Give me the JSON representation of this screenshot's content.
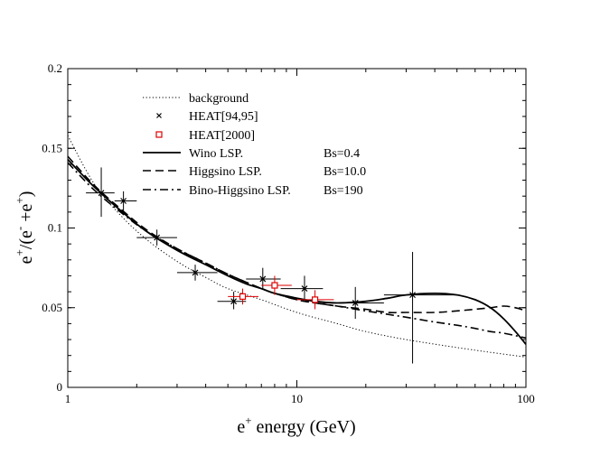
{
  "chart_data": {
    "type": "line",
    "xscale": "log",
    "xlim": [
      1,
      100
    ],
    "ylim": [
      0,
      0.2
    ],
    "xlabel": {
      "base": "e",
      "sup": "+",
      "rest": " energy (GeV)"
    },
    "ylabel": {
      "p1": "e",
      "s1": "+",
      "p2": "/(e",
      "s2": "-",
      "p3": " +e",
      "s3": "+",
      "p4": ")"
    },
    "x_ticks": [
      {
        "value": 1,
        "label": "1"
      },
      {
        "value": 10,
        "label": "10"
      },
      {
        "value": 100,
        "label": "100"
      }
    ],
    "y_ticks": [
      {
        "value": 0,
        "label": "0"
      },
      {
        "value": 0.05,
        "label": "0.05"
      },
      {
        "value": 0.1,
        "label": "0.1"
      },
      {
        "value": 0.15,
        "label": "0.15"
      },
      {
        "value": 0.2,
        "label": "0.2"
      }
    ],
    "legend_position": "top-left",
    "legend": [
      {
        "key": "background",
        "label": "background",
        "param": ""
      },
      {
        "key": "heat9495",
        "label": "HEAT[94,95]",
        "param": ""
      },
      {
        "key": "heat2000",
        "label": "HEAT[2000]",
        "param": ""
      },
      {
        "key": "wino",
        "label": "Wino LSP.",
        "param": "Bs=0.4"
      },
      {
        "key": "higgsino",
        "label": "Higgsino LSP.",
        "param": "Bs=10.0"
      },
      {
        "key": "binohiggsino",
        "label": "Bino-Higgsino LSP.",
        "param": "Bs=190"
      }
    ],
    "series": [
      {
        "key": "background",
        "style": "dotted",
        "color": "#000000",
        "points": [
          [
            1,
            0.158
          ],
          [
            1.3,
            0.128
          ],
          [
            1.7,
            0.108
          ],
          [
            2.2,
            0.093
          ],
          [
            3,
            0.079
          ],
          [
            4,
            0.069
          ],
          [
            5,
            0.062
          ],
          [
            7,
            0.055
          ],
          [
            10,
            0.047
          ],
          [
            15,
            0.04
          ],
          [
            20,
            0.035
          ],
          [
            30,
            0.03
          ],
          [
            50,
            0.025
          ],
          [
            70,
            0.022
          ],
          [
            100,
            0.019
          ]
        ]
      },
      {
        "key": "wino",
        "style": "solid",
        "color": "#000000",
        "points": [
          [
            1,
            0.143
          ],
          [
            1.3,
            0.126
          ],
          [
            1.7,
            0.111
          ],
          [
            2.2,
            0.098
          ],
          [
            3,
            0.086
          ],
          [
            4,
            0.077
          ],
          [
            5,
            0.07
          ],
          [
            6,
            0.065
          ],
          [
            7,
            0.062
          ],
          [
            8,
            0.059
          ],
          [
            10,
            0.056
          ],
          [
            12,
            0.054
          ],
          [
            15,
            0.053
          ],
          [
            20,
            0.054
          ],
          [
            25,
            0.056
          ],
          [
            30,
            0.058
          ],
          [
            40,
            0.059
          ],
          [
            50,
            0.058
          ],
          [
            60,
            0.055
          ],
          [
            70,
            0.05
          ],
          [
            80,
            0.043
          ],
          [
            90,
            0.035
          ],
          [
            100,
            0.027
          ]
        ]
      },
      {
        "key": "higgsino",
        "style": "dashed",
        "color": "#000000",
        "points": [
          [
            1,
            0.145
          ],
          [
            1.3,
            0.127
          ],
          [
            1.7,
            0.112
          ],
          [
            2.2,
            0.099
          ],
          [
            3,
            0.087
          ],
          [
            4,
            0.078
          ],
          [
            5,
            0.071
          ],
          [
            6,
            0.066
          ],
          [
            7,
            0.062
          ],
          [
            8,
            0.059
          ],
          [
            10,
            0.055
          ],
          [
            12,
            0.053
          ],
          [
            15,
            0.051
          ],
          [
            20,
            0.049
          ],
          [
            25,
            0.047
          ],
          [
            30,
            0.047
          ],
          [
            40,
            0.047
          ],
          [
            50,
            0.048
          ],
          [
            60,
            0.049
          ],
          [
            70,
            0.05
          ],
          [
            80,
            0.051
          ],
          [
            90,
            0.05
          ],
          [
            100,
            0.048
          ]
        ]
      },
      {
        "key": "binohiggsino",
        "style": "dashdot",
        "color": "#000000",
        "points": [
          [
            1,
            0.141
          ],
          [
            1.3,
            0.124
          ],
          [
            1.7,
            0.11
          ],
          [
            2.2,
            0.098
          ],
          [
            3,
            0.087
          ],
          [
            4,
            0.078
          ],
          [
            5,
            0.071
          ],
          [
            6,
            0.066
          ],
          [
            7,
            0.062
          ],
          [
            8,
            0.059
          ],
          [
            10,
            0.055
          ],
          [
            12,
            0.053
          ],
          [
            15,
            0.051
          ],
          [
            20,
            0.048
          ],
          [
            30,
            0.044
          ],
          [
            40,
            0.041
          ],
          [
            50,
            0.039
          ],
          [
            60,
            0.037
          ],
          [
            70,
            0.035
          ],
          [
            80,
            0.034
          ],
          [
            100,
            0.031
          ]
        ]
      }
    ],
    "heat9495": {
      "color": "#000000",
      "marker": "x",
      "points": [
        {
          "x": 1.4,
          "y": 0.122,
          "xlo": 1.2,
          "xhi": 1.6,
          "ylo": 0.107,
          "yhi": 0.138
        },
        {
          "x": 1.75,
          "y": 0.117,
          "xlo": 1.6,
          "xhi": 2.0,
          "ylo": 0.111,
          "yhi": 0.123
        },
        {
          "x": 2.45,
          "y": 0.094,
          "xlo": 2.0,
          "xhi": 3.0,
          "ylo": 0.089,
          "yhi": 0.099
        },
        {
          "x": 3.6,
          "y": 0.072,
          "xlo": 3.0,
          "xhi": 4.5,
          "ylo": 0.067,
          "yhi": 0.077
        },
        {
          "x": 5.3,
          "y": 0.054,
          "xlo": 4.5,
          "xhi": 6.0,
          "ylo": 0.049,
          "yhi": 0.06
        },
        {
          "x": 7.1,
          "y": 0.068,
          "xlo": 6.0,
          "xhi": 8.5,
          "ylo": 0.062,
          "yhi": 0.075
        },
        {
          "x": 10.8,
          "y": 0.062,
          "xlo": 8.5,
          "xhi": 13.0,
          "ylo": 0.055,
          "yhi": 0.07
        },
        {
          "x": 18,
          "y": 0.053,
          "xlo": 13.0,
          "xhi": 24.0,
          "ylo": 0.043,
          "yhi": 0.063
        },
        {
          "x": 32,
          "y": 0.058,
          "xlo": 24.0,
          "xhi": 50.0,
          "ylo": 0.015,
          "yhi": 0.085
        }
      ]
    },
    "heat2000": {
      "color": "#dd0000",
      "marker": "square",
      "points": [
        {
          "x": 5.8,
          "y": 0.057,
          "xlo": 5.0,
          "xhi": 6.8,
          "ylo": 0.052,
          "yhi": 0.062
        },
        {
          "x": 8,
          "y": 0.064,
          "xlo": 7.0,
          "xhi": 9.5,
          "ylo": 0.058,
          "yhi": 0.07
        },
        {
          "x": 12,
          "y": 0.055,
          "xlo": 10.0,
          "xhi": 14.5,
          "ylo": 0.049,
          "yhi": 0.061
        }
      ]
    }
  }
}
